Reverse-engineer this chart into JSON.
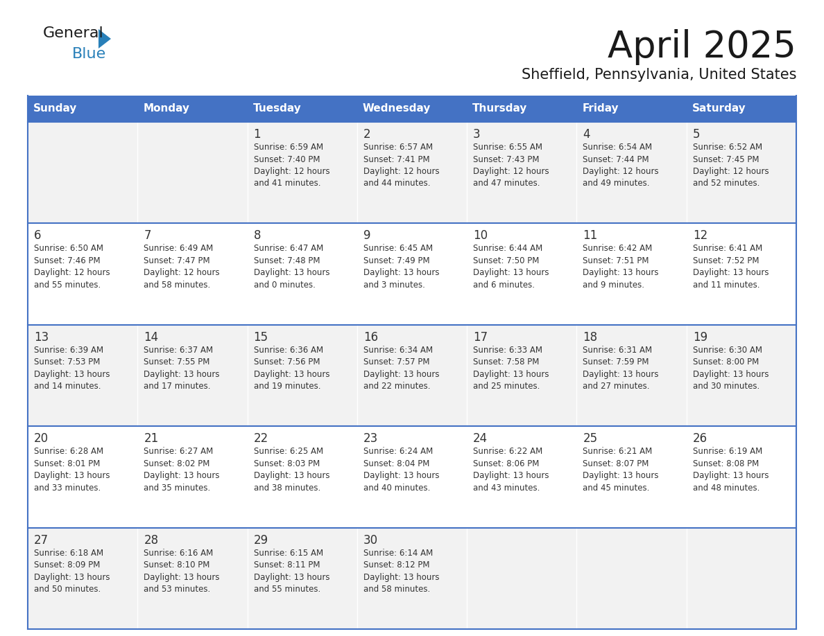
{
  "title": "April 2025",
  "subtitle": "Sheffield, Pennsylvania, United States",
  "header_color": "#4472C4",
  "header_text_color": "#FFFFFF",
  "row_bg_odd": "#F2F2F2",
  "row_bg_even": "#FFFFFF",
  "border_color": "#4472C4",
  "text_color": "#333333",
  "days_of_week": [
    "Sunday",
    "Monday",
    "Tuesday",
    "Wednesday",
    "Thursday",
    "Friday",
    "Saturday"
  ],
  "weeks": [
    [
      {
        "day": "",
        "lines": []
      },
      {
        "day": "",
        "lines": []
      },
      {
        "day": "1",
        "lines": [
          "Sunrise: 6:59 AM",
          "Sunset: 7:40 PM",
          "Daylight: 12 hours",
          "and 41 minutes."
        ]
      },
      {
        "day": "2",
        "lines": [
          "Sunrise: 6:57 AM",
          "Sunset: 7:41 PM",
          "Daylight: 12 hours",
          "and 44 minutes."
        ]
      },
      {
        "day": "3",
        "lines": [
          "Sunrise: 6:55 AM",
          "Sunset: 7:43 PM",
          "Daylight: 12 hours",
          "and 47 minutes."
        ]
      },
      {
        "day": "4",
        "lines": [
          "Sunrise: 6:54 AM",
          "Sunset: 7:44 PM",
          "Daylight: 12 hours",
          "and 49 minutes."
        ]
      },
      {
        "day": "5",
        "lines": [
          "Sunrise: 6:52 AM",
          "Sunset: 7:45 PM",
          "Daylight: 12 hours",
          "and 52 minutes."
        ]
      }
    ],
    [
      {
        "day": "6",
        "lines": [
          "Sunrise: 6:50 AM",
          "Sunset: 7:46 PM",
          "Daylight: 12 hours",
          "and 55 minutes."
        ]
      },
      {
        "day": "7",
        "lines": [
          "Sunrise: 6:49 AM",
          "Sunset: 7:47 PM",
          "Daylight: 12 hours",
          "and 58 minutes."
        ]
      },
      {
        "day": "8",
        "lines": [
          "Sunrise: 6:47 AM",
          "Sunset: 7:48 PM",
          "Daylight: 13 hours",
          "and 0 minutes."
        ]
      },
      {
        "day": "9",
        "lines": [
          "Sunrise: 6:45 AM",
          "Sunset: 7:49 PM",
          "Daylight: 13 hours",
          "and 3 minutes."
        ]
      },
      {
        "day": "10",
        "lines": [
          "Sunrise: 6:44 AM",
          "Sunset: 7:50 PM",
          "Daylight: 13 hours",
          "and 6 minutes."
        ]
      },
      {
        "day": "11",
        "lines": [
          "Sunrise: 6:42 AM",
          "Sunset: 7:51 PM",
          "Daylight: 13 hours",
          "and 9 minutes."
        ]
      },
      {
        "day": "12",
        "lines": [
          "Sunrise: 6:41 AM",
          "Sunset: 7:52 PM",
          "Daylight: 13 hours",
          "and 11 minutes."
        ]
      }
    ],
    [
      {
        "day": "13",
        "lines": [
          "Sunrise: 6:39 AM",
          "Sunset: 7:53 PM",
          "Daylight: 13 hours",
          "and 14 minutes."
        ]
      },
      {
        "day": "14",
        "lines": [
          "Sunrise: 6:37 AM",
          "Sunset: 7:55 PM",
          "Daylight: 13 hours",
          "and 17 minutes."
        ]
      },
      {
        "day": "15",
        "lines": [
          "Sunrise: 6:36 AM",
          "Sunset: 7:56 PM",
          "Daylight: 13 hours",
          "and 19 minutes."
        ]
      },
      {
        "day": "16",
        "lines": [
          "Sunrise: 6:34 AM",
          "Sunset: 7:57 PM",
          "Daylight: 13 hours",
          "and 22 minutes."
        ]
      },
      {
        "day": "17",
        "lines": [
          "Sunrise: 6:33 AM",
          "Sunset: 7:58 PM",
          "Daylight: 13 hours",
          "and 25 minutes."
        ]
      },
      {
        "day": "18",
        "lines": [
          "Sunrise: 6:31 AM",
          "Sunset: 7:59 PM",
          "Daylight: 13 hours",
          "and 27 minutes."
        ]
      },
      {
        "day": "19",
        "lines": [
          "Sunrise: 6:30 AM",
          "Sunset: 8:00 PM",
          "Daylight: 13 hours",
          "and 30 minutes."
        ]
      }
    ],
    [
      {
        "day": "20",
        "lines": [
          "Sunrise: 6:28 AM",
          "Sunset: 8:01 PM",
          "Daylight: 13 hours",
          "and 33 minutes."
        ]
      },
      {
        "day": "21",
        "lines": [
          "Sunrise: 6:27 AM",
          "Sunset: 8:02 PM",
          "Daylight: 13 hours",
          "and 35 minutes."
        ]
      },
      {
        "day": "22",
        "lines": [
          "Sunrise: 6:25 AM",
          "Sunset: 8:03 PM",
          "Daylight: 13 hours",
          "and 38 minutes."
        ]
      },
      {
        "day": "23",
        "lines": [
          "Sunrise: 6:24 AM",
          "Sunset: 8:04 PM",
          "Daylight: 13 hours",
          "and 40 minutes."
        ]
      },
      {
        "day": "24",
        "lines": [
          "Sunrise: 6:22 AM",
          "Sunset: 8:06 PM",
          "Daylight: 13 hours",
          "and 43 minutes."
        ]
      },
      {
        "day": "25",
        "lines": [
          "Sunrise: 6:21 AM",
          "Sunset: 8:07 PM",
          "Daylight: 13 hours",
          "and 45 minutes."
        ]
      },
      {
        "day": "26",
        "lines": [
          "Sunrise: 6:19 AM",
          "Sunset: 8:08 PM",
          "Daylight: 13 hours",
          "and 48 minutes."
        ]
      }
    ],
    [
      {
        "day": "27",
        "lines": [
          "Sunrise: 6:18 AM",
          "Sunset: 8:09 PM",
          "Daylight: 13 hours",
          "and 50 minutes."
        ]
      },
      {
        "day": "28",
        "lines": [
          "Sunrise: 6:16 AM",
          "Sunset: 8:10 PM",
          "Daylight: 13 hours",
          "and 53 minutes."
        ]
      },
      {
        "day": "29",
        "lines": [
          "Sunrise: 6:15 AM",
          "Sunset: 8:11 PM",
          "Daylight: 13 hours",
          "and 55 minutes."
        ]
      },
      {
        "day": "30",
        "lines": [
          "Sunrise: 6:14 AM",
          "Sunset: 8:12 PM",
          "Daylight: 13 hours",
          "and 58 minutes."
        ]
      },
      {
        "day": "",
        "lines": []
      },
      {
        "day": "",
        "lines": []
      },
      {
        "day": "",
        "lines": []
      }
    ]
  ],
  "logo_color_general": "#1a1a1a",
  "logo_color_blue": "#2980B9",
  "logo_triangle_color": "#2980B9"
}
